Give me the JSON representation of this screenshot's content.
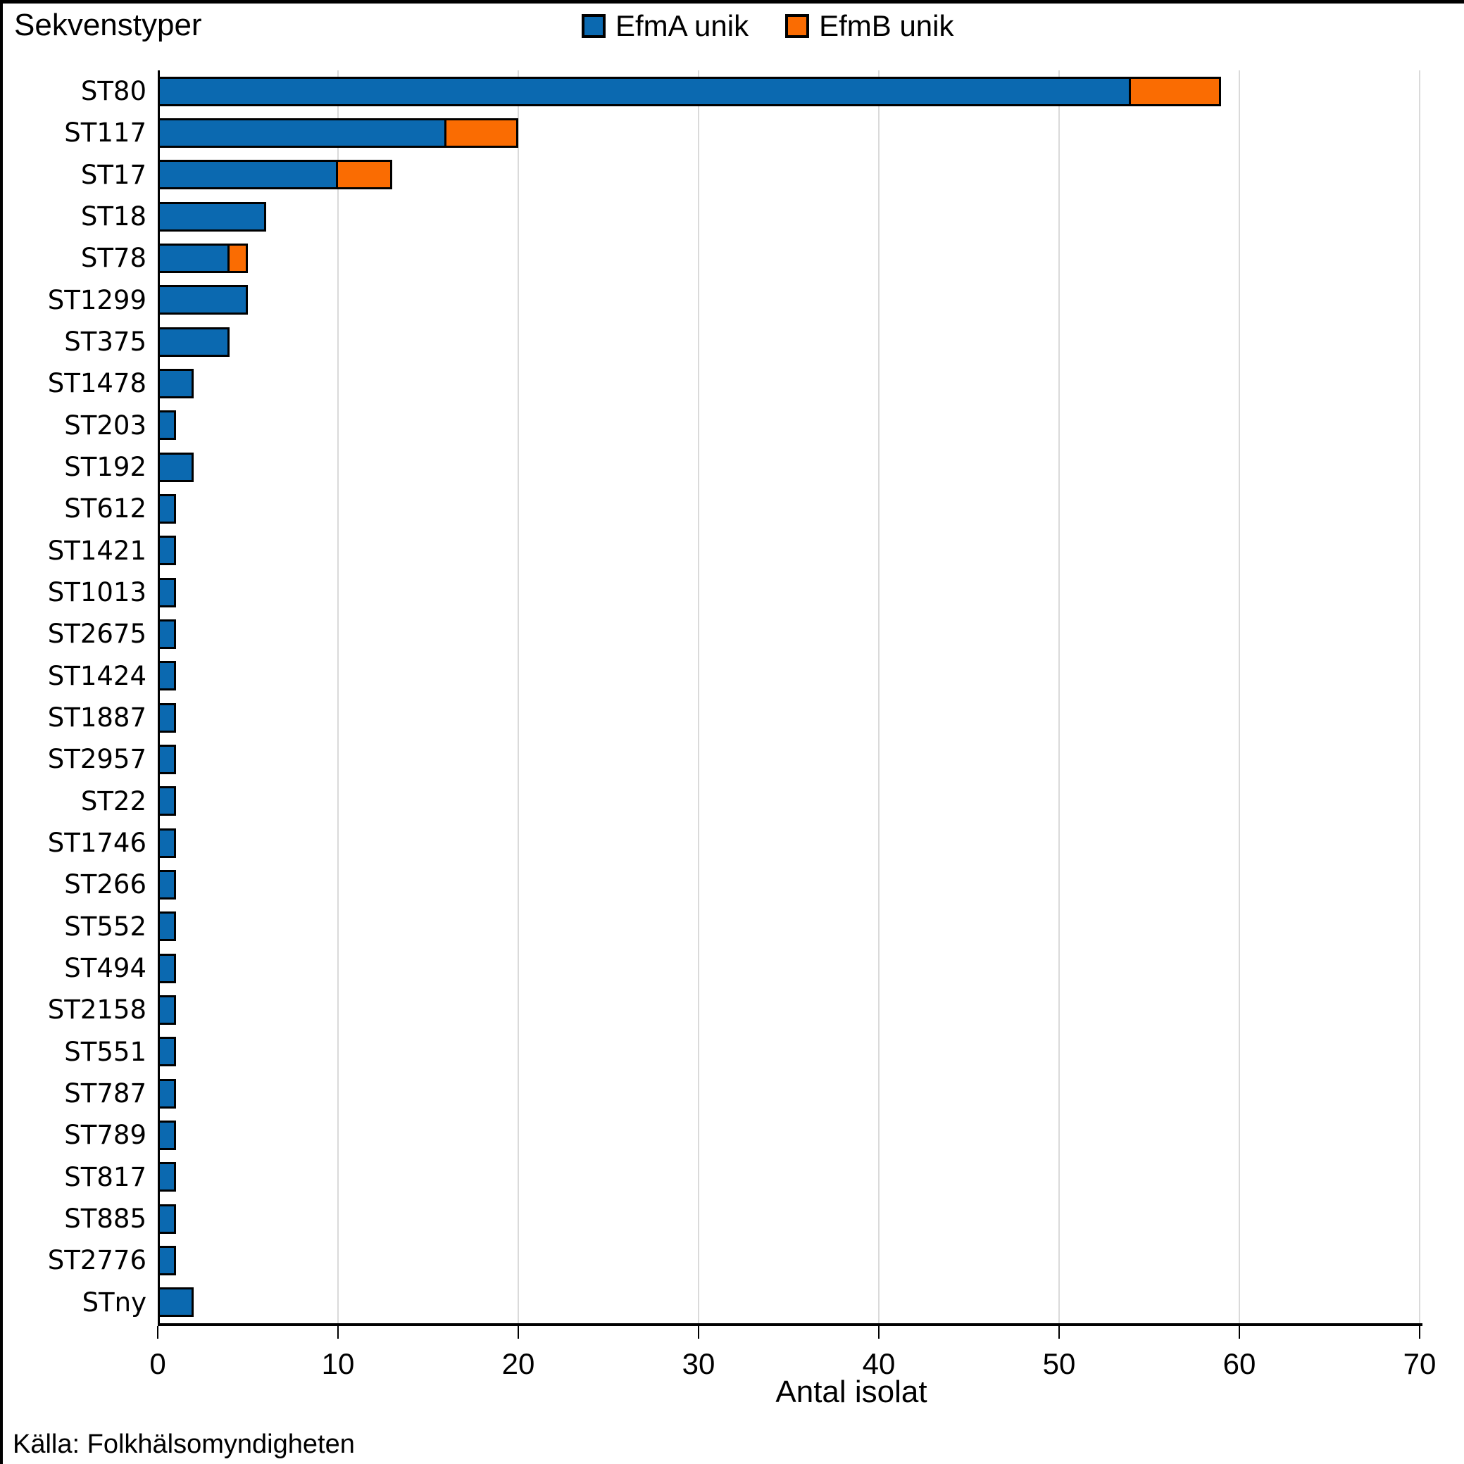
{
  "title": "Sekvenstyper",
  "legend": {
    "items": [
      {
        "label": "EfmA unik",
        "color": "#0B69B0"
      },
      {
        "label": "EfmB unik",
        "color": "#FA6C02"
      }
    ]
  },
  "x_axis": {
    "title": "Antal isolat",
    "tick_labels": [
      "0",
      "10",
      "20",
      "30",
      "40",
      "50",
      "60",
      "70"
    ]
  },
  "source": "Källa: Folkhälsomyndigheten",
  "colors": {
    "efma_blue": "#0B69B0",
    "efmb_orange": "#FA6C02",
    "gridline": "#dadada",
    "axis": "#000000"
  },
  "chart_data": {
    "type": "bar",
    "orientation": "horizontal",
    "stacked": true,
    "title": "Sekvenstyper",
    "xlabel": "Antal isolat",
    "ylabel": "",
    "xlim": [
      0,
      70
    ],
    "xticks": [
      0,
      10,
      20,
      30,
      40,
      50,
      60,
      70
    ],
    "grid": true,
    "legend_position": "top",
    "categories": [
      "ST80",
      "ST117",
      "ST17",
      "ST18",
      "ST78",
      "ST1299",
      "ST375",
      "ST1478",
      "ST203",
      "ST192",
      "ST612",
      "ST1421",
      "ST1013",
      "ST2675",
      "ST1424",
      "ST1887",
      "ST2957",
      "ST22",
      "ST1746",
      "ST266",
      "ST552",
      "ST494",
      "ST2158",
      "ST551",
      "ST787",
      "ST789",
      "ST817",
      "ST885",
      "ST2776",
      "STny"
    ],
    "series": [
      {
        "name": "EfmA unik",
        "color": "#0B69B0",
        "values": [
          54,
          16,
          10,
          6,
          4,
          5,
          4,
          2,
          1,
          2,
          1,
          1,
          1,
          1,
          1,
          1,
          1,
          1,
          1,
          1,
          1,
          1,
          1,
          1,
          1,
          1,
          1,
          1,
          1,
          2
        ]
      },
      {
        "name": "EfmB unik",
        "color": "#FA6C02",
        "values": [
          5,
          4,
          3,
          0,
          1,
          0,
          0,
          0,
          0,
          0,
          0,
          0,
          0,
          0,
          0,
          0,
          0,
          0,
          0,
          0,
          0,
          0,
          0,
          0,
          0,
          0,
          0,
          0,
          0,
          0
        ]
      }
    ]
  }
}
